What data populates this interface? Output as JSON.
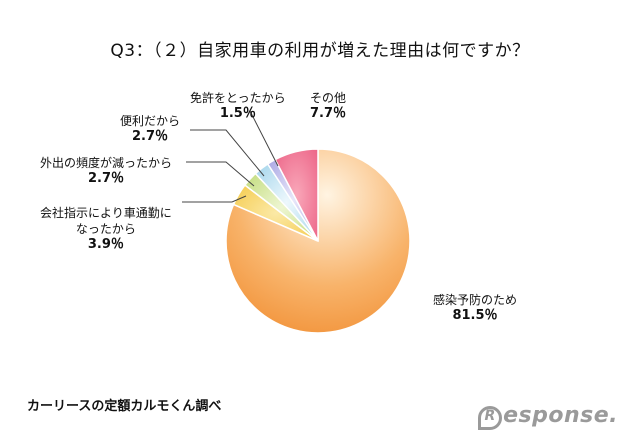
{
  "chart_data": {
    "type": "pie",
    "title": "Q3：（２）自家用車の利用が増えた理由は何ですか？",
    "slices": [
      {
        "label": "感染予防のため",
        "value_label": "81.5％",
        "value": 81.5,
        "color": "#f39a3e"
      },
      {
        "label": "会社指示により車通勤になったから",
        "value_label": "3.9％",
        "value": 3.9,
        "color": "#f6d15a"
      },
      {
        "label": "外出の頻度が減ったから",
        "value_label": "2.7％",
        "value": 2.7,
        "color": "#c9e08a"
      },
      {
        "label": "便利だから",
        "value_label": "2.7％",
        "value": 2.7,
        "color": "#a9d9ee"
      },
      {
        "label": "免許をとったから",
        "value_label": "1.5％",
        "value": 1.5,
        "color": "#b5b3e6"
      },
      {
        "label": "その他",
        "value_label": "7.7％",
        "value": 7.7,
        "color": "#ee6f8d"
      }
    ]
  },
  "labels": {
    "main": {
      "name": "感染予防のため",
      "value": "81.5％"
    },
    "company_line1": "会社指示により車通勤に",
    "company_line2": "なったから",
    "company_value": "3.9％",
    "outing": {
      "name": "外出の頻度が減ったから",
      "value": "2.7％"
    },
    "convenient": {
      "name": "便利だから",
      "value": "2.7％"
    },
    "license": {
      "name": "免許をとったから",
      "value": "1.5％"
    },
    "other": {
      "name": "その他",
      "value": "7.7％"
    }
  },
  "footer": {
    "source": "カーリースの定額カルモくん調べ",
    "watermark": "esponse.",
    "watermark_initial": "R"
  }
}
